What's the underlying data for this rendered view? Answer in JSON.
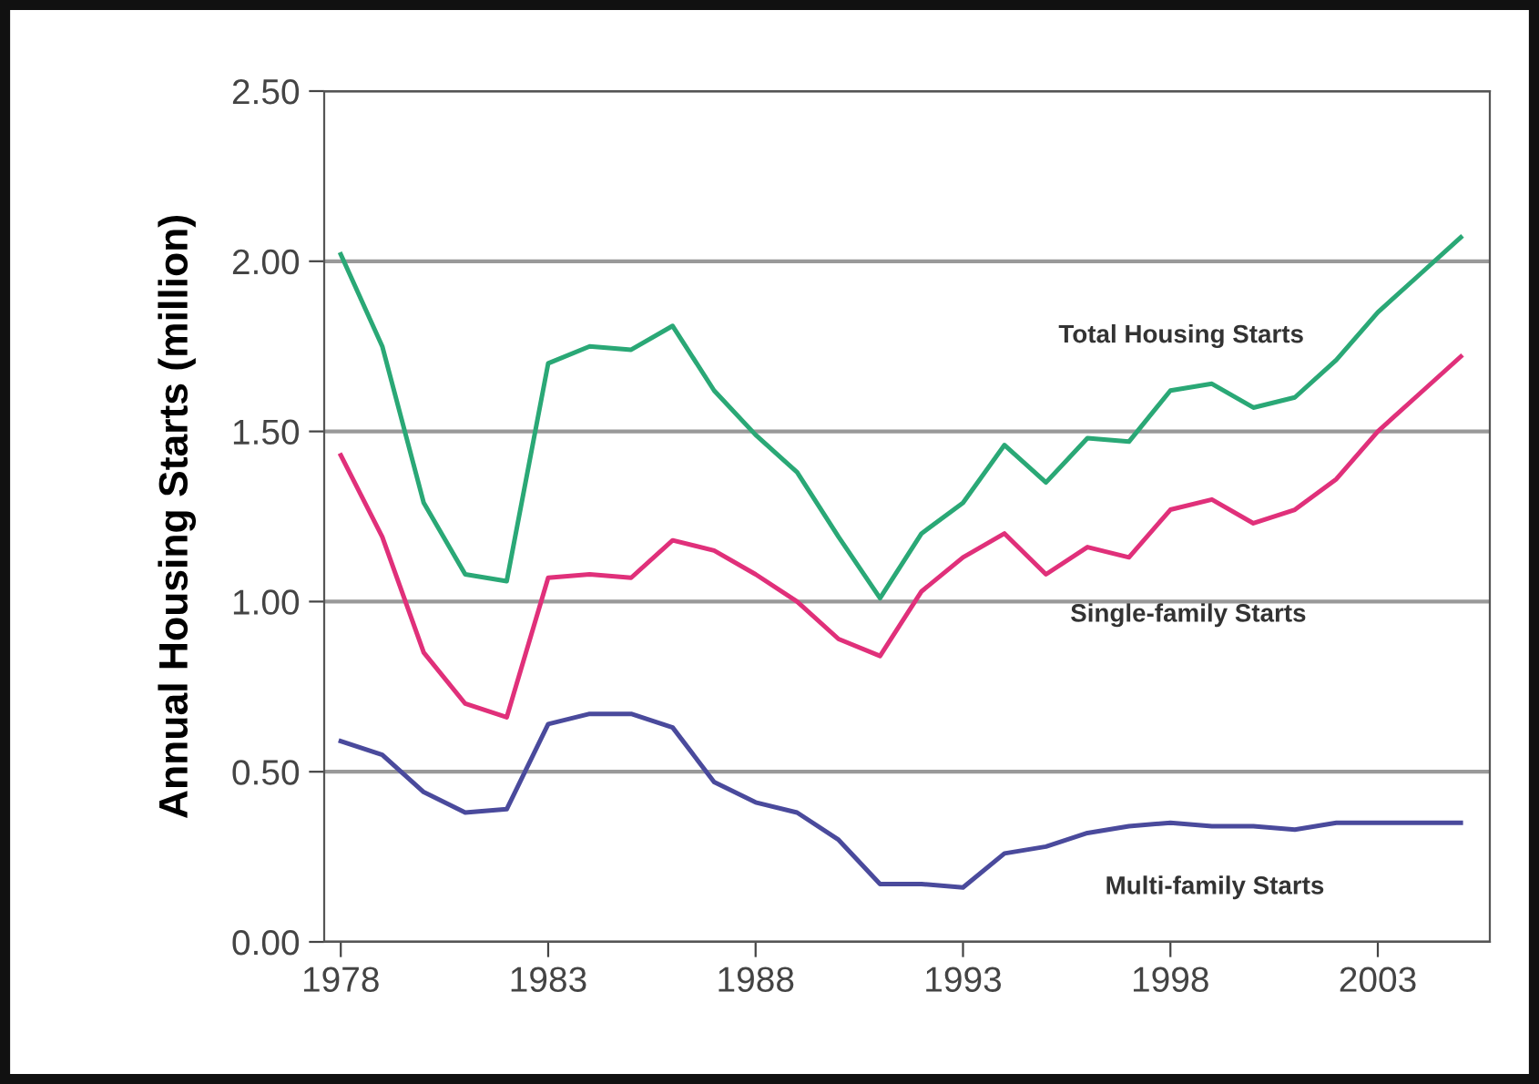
{
  "chart_data": {
    "type": "line",
    "ylabel": "Annual Housing Starts (million)",
    "x": [
      1978,
      1979,
      1980,
      1981,
      1982,
      1983,
      1984,
      1985,
      1986,
      1987,
      1988,
      1989,
      1990,
      1991,
      1992,
      1993,
      1994,
      1995,
      1996,
      1997,
      1998,
      1999,
      2000,
      2001,
      2002,
      2003,
      2004,
      2005
    ],
    "series": [
      {
        "name": "Total Housing Starts",
        "color": "#2aa876",
        "values": [
          2.02,
          1.75,
          1.29,
          1.08,
          1.06,
          1.7,
          1.75,
          1.74,
          1.81,
          1.62,
          1.49,
          1.38,
          1.19,
          1.01,
          1.2,
          1.29,
          1.46,
          1.35,
          1.48,
          1.47,
          1.62,
          1.64,
          1.57,
          1.6,
          1.71,
          1.85,
          1.96,
          2.07
        ]
      },
      {
        "name": "Single-family Starts",
        "color": "#e0307a",
        "values": [
          1.43,
          1.19,
          0.85,
          0.7,
          0.66,
          1.07,
          1.08,
          1.07,
          1.18,
          1.15,
          1.08,
          1.0,
          0.89,
          0.84,
          1.03,
          1.13,
          1.2,
          1.08,
          1.16,
          1.13,
          1.27,
          1.3,
          1.23,
          1.27,
          1.36,
          1.5,
          1.61,
          1.72
        ]
      },
      {
        "name": "Multi-family Starts",
        "color": "#4a4a9c",
        "values": [
          0.59,
          0.55,
          0.44,
          0.38,
          0.39,
          0.64,
          0.67,
          0.67,
          0.63,
          0.47,
          0.41,
          0.38,
          0.3,
          0.17,
          0.17,
          0.16,
          0.26,
          0.28,
          0.32,
          0.34,
          0.35,
          0.34,
          0.34,
          0.33,
          0.35,
          0.35,
          0.35,
          0.35
        ]
      }
    ],
    "xlim": [
      1977.6,
      2005.7
    ],
    "xticks": [
      1978,
      1983,
      1988,
      1993,
      1998,
      2003
    ],
    "ylim": [
      0,
      2.5
    ],
    "yticks": [
      {
        "value": 0,
        "label": "0.00"
      },
      {
        "value": 0.5,
        "label": "0.50"
      },
      {
        "value": 1.0,
        "label": "1.00"
      },
      {
        "value": 1.5,
        "label": "1.50"
      },
      {
        "value": 2.0,
        "label": "2.00"
      },
      {
        "value": 2.5,
        "label": "2.50"
      }
    ],
    "grid": "y",
    "legend": false,
    "line_style": "solid",
    "marker": "none"
  }
}
